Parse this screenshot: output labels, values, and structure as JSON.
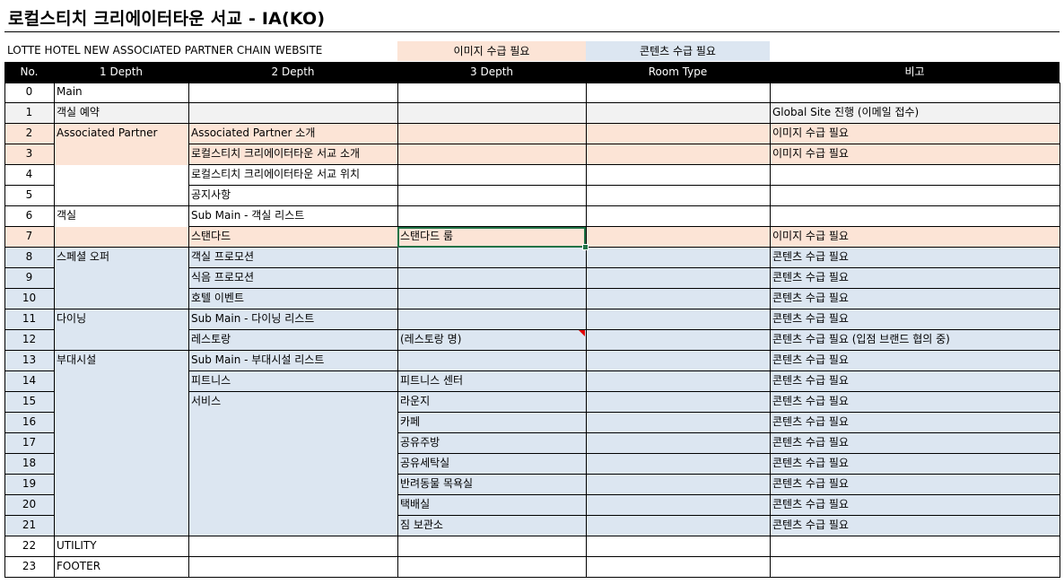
{
  "title": "로컬스티치 크리에이터타운 서교 - IA(KO)",
  "subtitle": "LOTTE HOTEL NEW ASSOCIATED PARTNER CHAIN WEBSITE",
  "legend": {
    "image_needed": {
      "label": "이미지 수급 필요",
      "color": "#fce4d6"
    },
    "content_needed": {
      "label": "콘텐츠 수급 필요",
      "color": "#dce6f1"
    }
  },
  "columns": [
    "No.",
    "1 Depth",
    "2 Depth",
    "3 Depth",
    "Room Type",
    "비고"
  ],
  "rows": [
    {
      "no": "0",
      "d1": "Main",
      "d2": "",
      "d3": "",
      "room_type": "",
      "note": "",
      "fill": "white"
    },
    {
      "no": "1",
      "d1": "객실 예약",
      "d2": "",
      "d3": "",
      "room_type": "",
      "note": "Global Site 진행 (이메일 접수)",
      "fill": "gray"
    },
    {
      "no": "2",
      "d1": "Associated Partner",
      "d2": "Associated Partner 소개",
      "d3": "",
      "room_type": "",
      "note": "이미지 수급 필요",
      "fill": "orange"
    },
    {
      "no": "3",
      "d1": "",
      "d2": "로컬스티치 크리에이터타운 서교 소개",
      "d3": "",
      "room_type": "",
      "note": "이미지 수급 필요",
      "fill": "orange"
    },
    {
      "no": "4",
      "d1": "",
      "d2": "로컬스티치 크리에이터타운 서교 위치",
      "d3": "",
      "room_type": "",
      "note": "",
      "fill": "white"
    },
    {
      "no": "5",
      "d1": "",
      "d2": "공지사항",
      "d3": "",
      "room_type": "",
      "note": "",
      "fill": "white"
    },
    {
      "no": "6",
      "d1": "객실",
      "d2": "Sub Main - 객실 리스트",
      "d3": "",
      "room_type": "",
      "note": "",
      "fill": "white"
    },
    {
      "no": "7",
      "d1": "",
      "d2": "스탠다드",
      "d3": "스탠다드 룸",
      "room_type": "",
      "note": "이미지 수급 필요",
      "fill": "orange"
    },
    {
      "no": "8",
      "d1": "스페셜 오퍼",
      "d2": "객실 프로모션",
      "d3": "",
      "room_type": "",
      "note": "콘텐츠 수급 필요",
      "fill": "blue"
    },
    {
      "no": "9",
      "d1": "",
      "d2": "식음 프로모션",
      "d3": "",
      "room_type": "",
      "note": "콘텐츠 수급 필요",
      "fill": "blue"
    },
    {
      "no": "10",
      "d1": "",
      "d2": "호텔 이벤트",
      "d3": "",
      "room_type": "",
      "note": "콘텐츠 수급 필요",
      "fill": "blue"
    },
    {
      "no": "11",
      "d1": "다이닝",
      "d2": "Sub Main - 다이닝 리스트",
      "d3": "",
      "room_type": "",
      "note": "콘텐츠 수급 필요",
      "fill": "blue"
    },
    {
      "no": "12",
      "d1": "",
      "d2": "레스토랑",
      "d3": "(레스토랑 명)",
      "room_type": "",
      "note": "콘텐츠 수급 필요 (입점 브랜드 협의 중)",
      "fill": "blue"
    },
    {
      "no": "13",
      "d1": "부대시설",
      "d2": "Sub Main - 부대시설 리스트",
      "d3": "",
      "room_type": "",
      "note": "콘텐츠 수급 필요",
      "fill": "blue"
    },
    {
      "no": "14",
      "d1": "",
      "d2": "피트니스",
      "d3": "피트니스 센터",
      "room_type": "",
      "note": "콘텐츠 수급 필요",
      "fill": "blue"
    },
    {
      "no": "15",
      "d1": "",
      "d2": "서비스",
      "d3": "라운지",
      "room_type": "",
      "note": "콘텐츠 수급 필요",
      "fill": "blue"
    },
    {
      "no": "16",
      "d1": "",
      "d2": "",
      "d3": "카페",
      "room_type": "",
      "note": "콘텐츠 수급 필요",
      "fill": "blue"
    },
    {
      "no": "17",
      "d1": "",
      "d2": "",
      "d3": "공유주방",
      "room_type": "",
      "note": "콘텐츠 수급 필요",
      "fill": "blue"
    },
    {
      "no": "18",
      "d1": "",
      "d2": "",
      "d3": "공유세탁실",
      "room_type": "",
      "note": "콘텐츠 수급 필요",
      "fill": "blue"
    },
    {
      "no": "19",
      "d1": "",
      "d2": "",
      "d3": "반려동물 목욕실",
      "room_type": "",
      "note": "콘텐츠 수급 필요",
      "fill": "blue"
    },
    {
      "no": "20",
      "d1": "",
      "d2": "",
      "d3": "택배실",
      "room_type": "",
      "note": "콘텐츠 수급 필요",
      "fill": "blue"
    },
    {
      "no": "21",
      "d1": "",
      "d2": "",
      "d3": "짐 보관소",
      "room_type": "",
      "note": "콘텐츠 수급 필요",
      "fill": "blue"
    },
    {
      "no": "22",
      "d1": "UTILITY",
      "d2": "",
      "d3": "",
      "room_type": "",
      "note": "",
      "fill": "white"
    },
    {
      "no": "23",
      "d1": "FOOTER",
      "d2": "",
      "d3": "",
      "room_type": "",
      "note": "",
      "fill": "white"
    }
  ]
}
